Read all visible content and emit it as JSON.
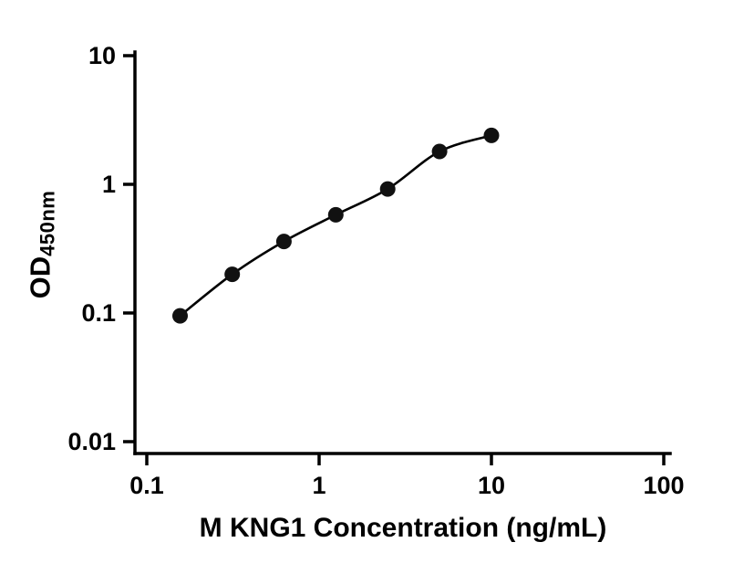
{
  "chart_data": {
    "type": "scatter",
    "title": "",
    "xlabel": "M KNG1 Concentration (ng/mL)",
    "ylabel_main": "OD",
    "ylabel_sub": "450nm",
    "x": [
      0.156,
      0.313,
      0.625,
      1.25,
      2.5,
      5,
      10
    ],
    "y": [
      0.095,
      0.2,
      0.36,
      0.58,
      0.92,
      1.8,
      2.4
    ],
    "xlim": [
      0.1,
      100
    ],
    "ylim": [
      0.01,
      10
    ],
    "log_x": true,
    "log_y": true,
    "x_ticks": [
      {
        "value": 0.1,
        "label": "0.1"
      },
      {
        "value": 1,
        "label": "1"
      },
      {
        "value": 10,
        "label": "10"
      },
      {
        "value": 100,
        "label": "100"
      }
    ],
    "y_ticks": [
      {
        "value": 0.01,
        "label": "0.01"
      },
      {
        "value": 0.1,
        "label": "0.1"
      },
      {
        "value": 1,
        "label": "1"
      },
      {
        "value": 10,
        "label": "10"
      }
    ],
    "grid": false,
    "legend": false,
    "line_style": "smooth-fit",
    "marker_color": "#111111",
    "line_color": "#000000"
  }
}
